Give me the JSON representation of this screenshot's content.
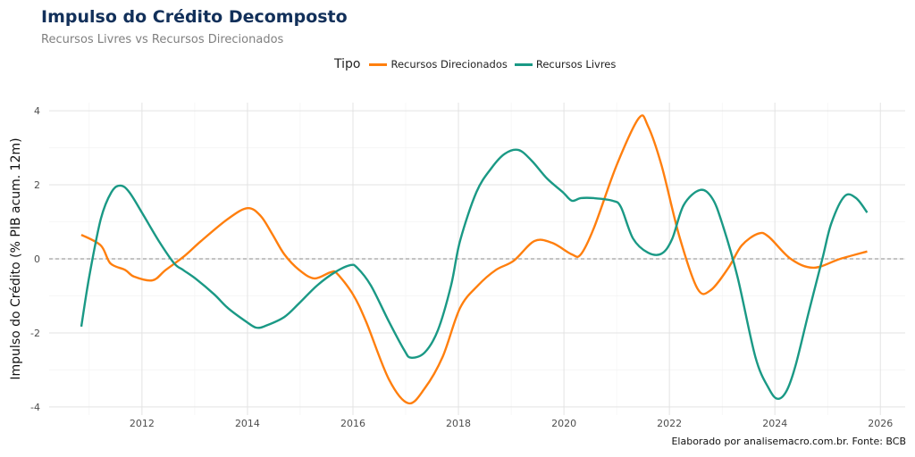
{
  "chart_data": {
    "type": "line",
    "title": "Impulso do Crédito Decomposto",
    "subtitle": "Recursos Livres vs Recursos Direcionados",
    "xlabel": "",
    "ylabel": "Impulso do Crédito (% PIB acum. 12m)",
    "caption": "Elaborado por analisemacro.com.br. Fonte: BCB",
    "legend_title": "Tipo",
    "legend_position": "top",
    "grid": true,
    "xlim": [
      2010.24,
      2026.47
    ],
    "ylim": [
      -4.22,
      4.22
    ],
    "x_ticks": [
      2012,
      2014,
      2016,
      2018,
      2020,
      2022,
      2024,
      2026
    ],
    "y_ticks": [
      -4,
      -2,
      0,
      2,
      4
    ],
    "hline": 0,
    "series": [
      {
        "name": "Recursos Direcionados",
        "color": "#ff7f0e",
        "x": [
          2010.85,
          2011.22,
          2011.4,
          2011.68,
          2011.85,
          2012.2,
          2012.45,
          2012.8,
          2013.12,
          2013.63,
          2014.0,
          2014.25,
          2014.47,
          2014.7,
          2014.98,
          2015.27,
          2015.58,
          2015.7,
          2016.0,
          2016.25,
          2016.68,
          2017.05,
          2017.36,
          2017.7,
          2018.03,
          2018.37,
          2018.71,
          2019.05,
          2019.44,
          2019.78,
          2020.15,
          2020.32,
          2020.57,
          2021.0,
          2021.42,
          2021.59,
          2021.85,
          2022.19,
          2022.53,
          2022.78,
          2023.12,
          2023.37,
          2023.68,
          2023.88,
          2024.3,
          2024.73,
          2025.24,
          2025.75
        ],
        "y": [
          0.65,
          0.36,
          -0.12,
          -0.3,
          -0.48,
          -0.58,
          -0.3,
          0.07,
          0.48,
          1.08,
          1.37,
          1.16,
          0.67,
          0.12,
          -0.3,
          -0.53,
          -0.36,
          -0.4,
          -0.96,
          -1.7,
          -3.25,
          -3.9,
          -3.5,
          -2.65,
          -1.33,
          -0.72,
          -0.3,
          -0.05,
          0.48,
          0.43,
          0.12,
          0.12,
          0.84,
          2.53,
          3.8,
          3.6,
          2.53,
          0.6,
          -0.8,
          -0.85,
          -0.24,
          0.36,
          0.68,
          0.6,
          0.0,
          -0.24,
          0.0,
          0.2
        ]
      },
      {
        "name": "Recursos Livres",
        "color": "#1a9985",
        "x": [
          2010.85,
          2011.0,
          2011.22,
          2011.42,
          2011.59,
          2011.76,
          2012.02,
          2012.32,
          2012.61,
          2012.78,
          2013.03,
          2013.37,
          2013.63,
          2013.97,
          2014.17,
          2014.36,
          2014.7,
          2014.98,
          2015.32,
          2015.66,
          2015.95,
          2016.08,
          2016.34,
          2016.68,
          2016.97,
          2017.1,
          2017.36,
          2017.61,
          2017.86,
          2018.03,
          2018.34,
          2018.63,
          2018.88,
          2019.14,
          2019.39,
          2019.68,
          2019.98,
          2020.15,
          2020.32,
          2020.57,
          2020.92,
          2021.08,
          2021.31,
          2021.59,
          2021.85,
          2022.05,
          2022.27,
          2022.58,
          2022.81,
          2023.0,
          2023.29,
          2023.63,
          2023.88,
          2024.05,
          2024.22,
          2024.39,
          2024.64,
          2024.9,
          2025.07,
          2025.32,
          2025.54,
          2025.75
        ],
        "y": [
          -1.83,
          -0.48,
          1.08,
          1.8,
          1.98,
          1.8,
          1.2,
          0.48,
          -0.12,
          -0.3,
          -0.55,
          -0.96,
          -1.33,
          -1.69,
          -1.86,
          -1.8,
          -1.57,
          -1.2,
          -0.72,
          -0.36,
          -0.17,
          -0.24,
          -0.72,
          -1.69,
          -2.46,
          -2.67,
          -2.53,
          -1.93,
          -0.72,
          0.48,
          1.8,
          2.46,
          2.84,
          2.94,
          2.65,
          2.17,
          1.8,
          1.57,
          1.64,
          1.64,
          1.57,
          1.4,
          0.55,
          0.17,
          0.14,
          0.53,
          1.45,
          1.86,
          1.64,
          0.96,
          -0.48,
          -2.65,
          -3.49,
          -3.78,
          -3.57,
          -2.89,
          -1.45,
          0.0,
          0.96,
          1.69,
          1.64,
          1.25
        ]
      }
    ]
  }
}
